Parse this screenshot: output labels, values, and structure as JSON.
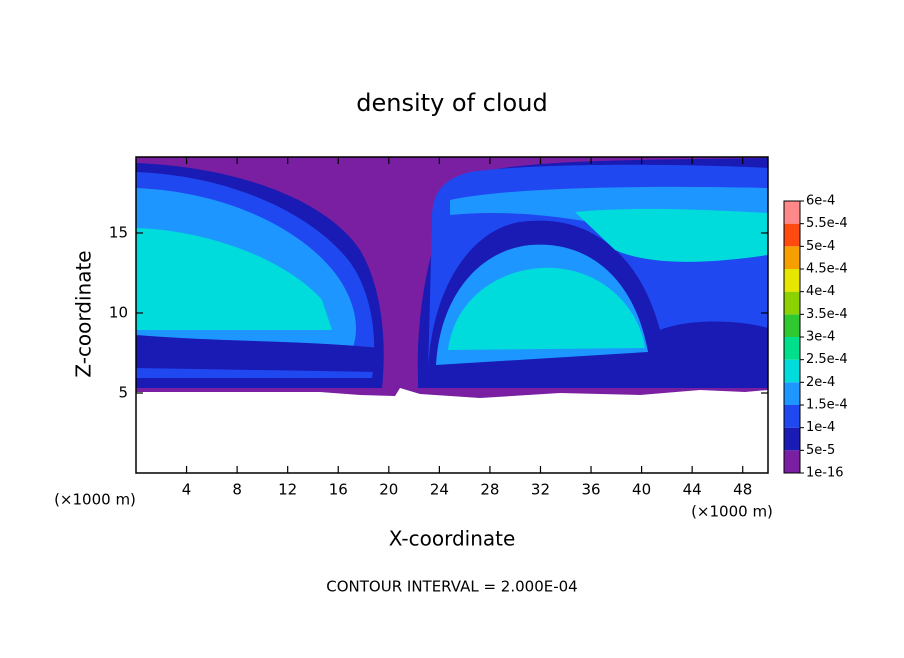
{
  "chart_data": {
    "type": "contour",
    "title": "density of cloud",
    "x_label": "X-coordinate",
    "y_label": "Z-coordinate",
    "x_unit": "(×1000 m)",
    "y_unit": "(×1000 m)",
    "xlim": [
      0,
      50
    ],
    "xticks": [
      4,
      8,
      12,
      16,
      20,
      24,
      28,
      32,
      36,
      40,
      44,
      48
    ],
    "ylim": [
      0,
      19.75
    ],
    "yticks": [
      5,
      10,
      15
    ],
    "colorbar": {
      "levels": [
        {
          "value": 1e-16,
          "label": "1e-16"
        },
        {
          "value": 5e-05,
          "label": "5e-5"
        },
        {
          "value": 0.0001,
          "label": "1e-4"
        },
        {
          "value": 0.00015,
          "label": "1.5e-4"
        },
        {
          "value": 0.0002,
          "label": "2e-4"
        },
        {
          "value": 0.00025,
          "label": "2.5e-4"
        },
        {
          "value": 0.0003,
          "label": "3e-4"
        },
        {
          "value": 0.00035,
          "label": "3.5e-4"
        },
        {
          "value": 0.0004,
          "label": "4e-4"
        },
        {
          "value": 0.00045,
          "label": "4.5e-4"
        },
        {
          "value": 0.0005,
          "label": "5e-4"
        },
        {
          "value": 0.00055,
          "label": "5.5e-4"
        },
        {
          "value": 0.0006,
          "label": "6e-4"
        }
      ],
      "colors": [
        "#7a1fa2",
        "#1a1ab4",
        "#1f48f0",
        "#1e96ff",
        "#00dcdc",
        "#00e08c",
        "#30c830",
        "#8cd200",
        "#e6e600",
        "#f5a000",
        "#ff4a10",
        "#ff8888"
      ]
    },
    "annotation": "CONTOUR INTERVAL = 2.000E-04"
  }
}
